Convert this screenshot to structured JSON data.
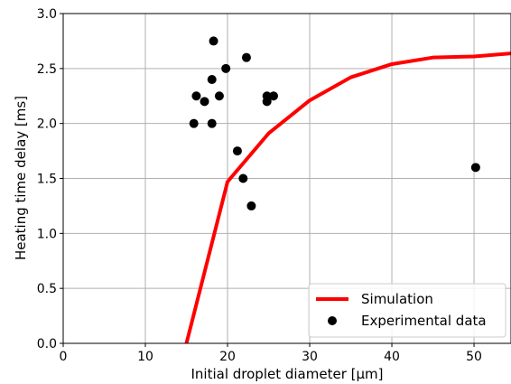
{
  "chart_data": {
    "type": "line",
    "xlabel": "Initial droplet diameter [µm]",
    "ylabel": "Heating time delay [ms]",
    "xlim": [
      0,
      54.5
    ],
    "ylim": [
      0,
      3.0
    ],
    "xticks": [
      0,
      10,
      20,
      30,
      40,
      50
    ],
    "yticks": [
      0.0,
      0.5,
      1.0,
      1.5,
      2.0,
      2.5,
      3.0
    ],
    "xtick_labels": [
      "0",
      "10",
      "20",
      "30",
      "40",
      "50"
    ],
    "ytick_labels": [
      "0.0",
      "0.5",
      "1.0",
      "1.5",
      "2.0",
      "2.5",
      "3.0"
    ],
    "grid": true,
    "legend_position": "lower-right",
    "series": [
      {
        "name": "Simulation",
        "kind": "line",
        "color": "#ff0000",
        "x": [
          15,
          20,
          25,
          30,
          35,
          40,
          45,
          50,
          55
        ],
        "y": [
          0.0,
          1.47,
          1.91,
          2.21,
          2.42,
          2.54,
          2.6,
          2.61,
          2.64
        ]
      },
      {
        "name": "Experimental data",
        "kind": "scatter",
        "color": "#000000",
        "x": [
          15.9,
          16.2,
          17.2,
          18.1,
          18.1,
          18.3,
          19.0,
          19.8,
          21.2,
          21.9,
          22.3,
          22.9,
          24.8,
          24.8,
          25.6,
          50.2
        ],
        "y": [
          2.0,
          2.25,
          2.2,
          2.0,
          2.4,
          2.75,
          2.25,
          2.5,
          1.75,
          1.5,
          2.6,
          1.25,
          2.2,
          2.25,
          2.25,
          1.6
        ]
      }
    ]
  }
}
